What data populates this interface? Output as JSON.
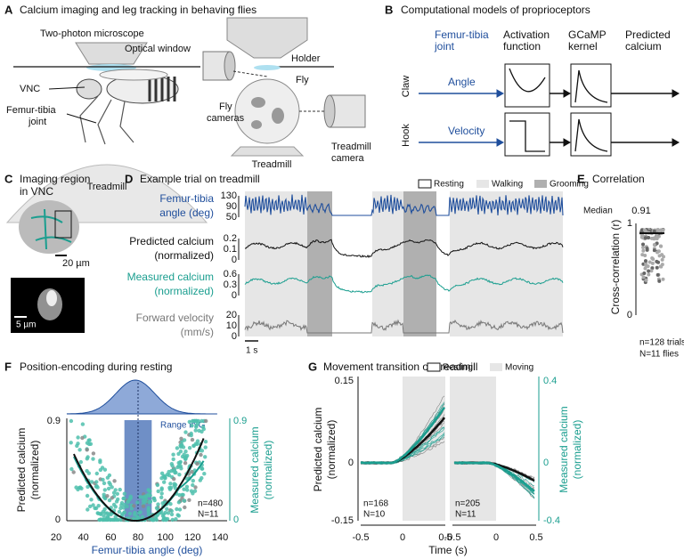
{
  "panel_a": {
    "letter": "A",
    "title": "Calcium imaging and leg tracking in behaving flies",
    "microscope": "Two-photon microscope",
    "optical_window": "Optical window",
    "vnc": "VNC",
    "joint": [
      "Femur-tibia",
      "joint"
    ],
    "treadmill_left": "Treadmill",
    "holder": "Holder",
    "fly": "Fly",
    "fly_cameras": [
      "Fly",
      "cameras"
    ],
    "treadmill_right": "Treadmill",
    "treadmill_camera": [
      "Treadmill",
      "camera"
    ]
  },
  "panel_b": {
    "letter": "B",
    "title": "Computational models of proprioceptors",
    "columns": [
      [
        "Femur-tibia",
        "joint"
      ],
      [
        "Activation",
        "function"
      ],
      [
        "GCaMP",
        "kernel"
      ],
      [
        "Predicted",
        "calcium"
      ]
    ],
    "rows": [
      {
        "name": "Claw",
        "input": "Angle"
      },
      {
        "name": "Hook",
        "input": "Velocity"
      }
    ]
  },
  "panel_c": {
    "letter": "C",
    "title": [
      "Imaging region",
      "in VNC"
    ],
    "scale_top": "20 µm",
    "scale_bottom": "5 µm"
  },
  "panel_d": {
    "letter": "D",
    "title": "Example trial on treadmill",
    "legend": [
      "Resting",
      "Walking",
      "Grooming"
    ],
    "traces": [
      {
        "label": [
          "Femur-tibia",
          "angle (deg)"
        ],
        "ticks": [
          "130",
          "90",
          "50"
        ]
      },
      {
        "label": [
          "Predicted calcium",
          "(normalized)"
        ],
        "ticks": [
          "0.2",
          "0.1",
          "0"
        ]
      },
      {
        "label": [
          "Measured calcium",
          "(normalized)"
        ],
        "ticks": [
          "0.6",
          "0.3",
          "0"
        ]
      },
      {
        "label": [
          "Forward velocity",
          "(mm/s)"
        ],
        "ticks": [
          "20",
          "10",
          "0"
        ]
      }
    ],
    "time_scale": "1 s"
  },
  "panel_e": {
    "letter": "E",
    "title": "Correlation",
    "median_label": "Median",
    "median": "0.91",
    "y_label": "Cross-correlation (r)",
    "yticks": [
      "1",
      "0"
    ],
    "n": "n=128 trials",
    "N": "N=11 flies"
  },
  "panel_f": {
    "letter": "F",
    "title": "Position-encoding during resting",
    "annotation": "Range in G",
    "y_label": [
      "Predicted calcium",
      "(normalized)"
    ],
    "y2_label": [
      "Measured calcium",
      "(normalized)"
    ],
    "yticks": [
      "0.9",
      "0"
    ],
    "y2ticks": [
      "0.9",
      "0"
    ],
    "xticks": [
      "20",
      "40",
      "60",
      "80",
      "100",
      "120",
      "140"
    ],
    "x_label": "Femur-tibia angle (deg)",
    "n": "n=480",
    "N": "N=11"
  },
  "panel_g": {
    "letter": "G",
    "title": "Movement transition on treadmill",
    "legend": [
      "Resting",
      "Moving"
    ],
    "y_label": [
      "Predicted calcium",
      "(normalized)"
    ],
    "y2_label": [
      "Measured calcium",
      "(normalized)"
    ],
    "yticks": [
      "0.15",
      "0",
      "-0.15"
    ],
    "y2ticks": [
      "0.4",
      "0",
      "-0.4"
    ],
    "xticks_left": [
      "-0.5",
      "0",
      "0.5"
    ],
    "xticks_right": [
      "-0.5",
      "0",
      "0.5"
    ],
    "x_label": "Time (s)",
    "left_counts": [
      "n=168",
      "N=10"
    ],
    "right_counts": [
      "n=205",
      "N=11"
    ]
  }
}
